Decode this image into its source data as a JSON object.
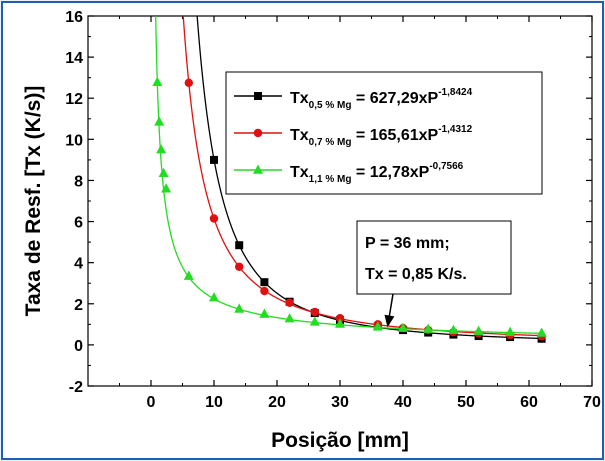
{
  "chart_data": {
    "type": "scatter",
    "xlabel": "Posição [mm]",
    "ylabel": "Taxa de Resf. [Tx (K/s)]",
    "xlim": [
      -10,
      70
    ],
    "ylim": [
      -2,
      16
    ],
    "x_ticks": [
      "0",
      "10",
      "20",
      "30",
      "40",
      "50",
      "60",
      "70"
    ],
    "y_ticks": [
      "-2",
      "0",
      "2",
      "4",
      "6",
      "8",
      "10",
      "12",
      "14",
      "16"
    ],
    "grid": false,
    "legend_position": "top-right",
    "series": [
      {
        "name": "Tx0,5 % Mg = 627,29xP-1,8424",
        "legend": {
          "base": "Tx",
          "sub": "0,5 % Mg",
          "mid": " = 627,29xP",
          "sup": "-1,8424"
        },
        "color": "#000000",
        "marker": "square",
        "fit": {
          "a": 627.29,
          "b": -1.8424
        },
        "x": [
          10,
          14,
          18,
          22,
          26,
          30,
          36,
          40,
          44,
          48,
          52,
          57,
          62
        ],
        "y": [
          9.0,
          4.85,
          3.05,
          2.1,
          1.55,
          1.2,
          0.9,
          0.72,
          0.6,
          0.5,
          0.43,
          0.38,
          0.3
        ]
      },
      {
        "name": "Tx0,7 % Mg = 165,61xP-1,4312",
        "legend": {
          "base": "Tx",
          "sub": "0,7 % Mg",
          "mid": " = 165,61xP",
          "sup": "-1,4312"
        },
        "color": "#e01010",
        "marker": "circle",
        "fit": {
          "a": 165.61,
          "b": -1.4312
        },
        "x": [
          6,
          10,
          14,
          18,
          22,
          26,
          30,
          36,
          40,
          44,
          48,
          52,
          57,
          62
        ],
        "y": [
          12.75,
          6.15,
          3.8,
          2.62,
          2.05,
          1.6,
          1.3,
          1.0,
          0.82,
          0.72,
          0.62,
          0.55,
          0.48,
          0.42
        ]
      },
      {
        "name": "Tx1,1 % Mg = 12,78xP-0,7566",
        "legend": {
          "base": "Tx",
          "sub": "1,1 % Mg",
          "mid": " =  12,78xP",
          "sup": "-0,7566"
        },
        "color": "#22dd22",
        "marker": "triangle",
        "fit": {
          "a": 12.78,
          "b": -0.7566
        },
        "x": [
          1,
          1.3,
          1.6,
          2,
          2.4,
          6,
          10,
          14,
          18,
          22,
          26,
          30,
          36,
          40,
          44,
          48,
          52,
          57,
          62
        ],
        "y": [
          12.78,
          10.85,
          9.5,
          8.35,
          7.6,
          3.35,
          2.3,
          1.75,
          1.5,
          1.28,
          1.12,
          1.02,
          0.88,
          0.82,
          0.77,
          0.72,
          0.67,
          0.62,
          0.58
        ]
      }
    ],
    "annotations": [
      {
        "lines": [
          "P = 36 mm;",
          "Tx = 0,85 K/s."
        ],
        "arrow_to": [
          36,
          0.85
        ]
      }
    ]
  }
}
